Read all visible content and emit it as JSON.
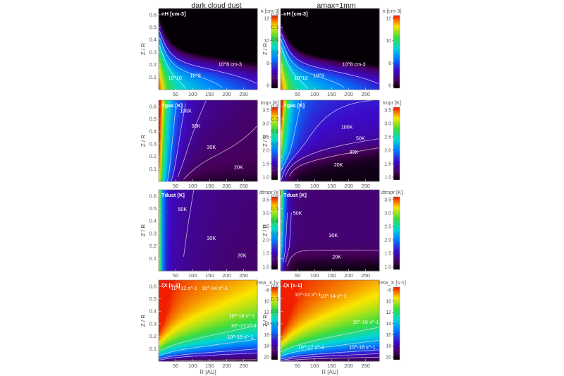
{
  "chart_data": {
    "type": "heatmap",
    "columns": [
      {
        "title": "dark cloud dust"
      },
      {
        "title": "amax=1mm"
      }
    ],
    "axis": {
      "xlabel": "R [AU]",
      "ylabel": "Z / R",
      "xticks": [
        50,
        100,
        150,
        200,
        250
      ],
      "yticks": [
        0.1,
        0.2,
        0.3,
        0.4,
        0.5,
        0.6
      ],
      "xlim": [
        0,
        290
      ],
      "ylim": [
        0,
        0.65
      ]
    },
    "rows": [
      {
        "quantity": "n",
        "colorbar_label": "n [cm-3]",
        "colorbar_ticks": [
          "12",
          "10",
          "8",
          "6"
        ],
        "colorbar_range": [
          6,
          13.5
        ],
        "colorscale": "rainbow",
        "colorbar_reversed": false,
        "inner_label": "nH [cm-3]",
        "panels": [
          {
            "contours": [
              {
                "label": "10^10",
                "level": 10,
                "x": 48,
                "y": 0.08
              },
              {
                "label": "10^9",
                "level": 9,
                "x": 108,
                "y": 0.1
              },
              {
                "label": "10^8 cm-3",
                "level": 8,
                "x": 210,
                "y": 0.19
              }
            ]
          },
          {
            "contours": [
              {
                "label": "10^10",
                "level": 10,
                "x": 60,
                "y": 0.08
              },
              {
                "label": "10^9",
                "level": 9,
                "x": 112,
                "y": 0.1
              },
              {
                "label": "10^8 cm-3",
                "level": 8,
                "x": 215,
                "y": 0.19
              }
            ]
          }
        ]
      },
      {
        "quantity": "Tgas",
        "colorbar_label": "tmpr [K]",
        "colorbar_ticks": [
          "3.5",
          "3.0",
          "2.5",
          "2.0",
          "1.5",
          "1.0"
        ],
        "colorbar_range": [
          1.0,
          3.6
        ],
        "colorscale": "rainbow",
        "colorbar_reversed": false,
        "inner_label": "Tgas [K]",
        "panels": [
          {
            "contours": [
              {
                "label": "100K",
                "level": 2.0,
                "x": 80,
                "y": 0.55
              },
              {
                "label": "50K",
                "level": 1.7,
                "x": 110,
                "y": 0.43
              },
              {
                "label": "30K",
                "level": 1.48,
                "x": 155,
                "y": 0.26
              },
              {
                "label": "20K",
                "level": 1.3,
                "x": 235,
                "y": 0.1
              }
            ]
          },
          {
            "contours": [
              {
                "label": "100K",
                "level": 2.0,
                "x": 195,
                "y": 0.42
              },
              {
                "label": "50K",
                "level": 1.7,
                "x": 235,
                "y": 0.33
              },
              {
                "label": "30K",
                "level": 1.48,
                "x": 215,
                "y": 0.22
              },
              {
                "label": "20K",
                "level": 1.3,
                "x": 170,
                "y": 0.12
              }
            ]
          }
        ]
      },
      {
        "quantity": "Tdust",
        "colorbar_label": "dtmpr [K]",
        "colorbar_ticks": [
          "3.5",
          "3.0",
          "2.5",
          "2.0",
          "1.5",
          "1.0"
        ],
        "colorbar_range": [
          1.0,
          3.6
        ],
        "colorscale": "rainbow",
        "colorbar_reversed": false,
        "inner_label": "Tdust [K]",
        "panels": [
          {
            "contours": [
              {
                "label": "50K",
                "level": 1.7,
                "x": 70,
                "y": 0.48
              },
              {
                "label": "30K",
                "level": 1.48,
                "x": 155,
                "y": 0.25
              },
              {
                "label": "20K",
                "level": 1.3,
                "x": 245,
                "y": 0.11
              }
            ]
          },
          {
            "contours": [
              {
                "label": "50K",
                "level": 1.7,
                "x": 50,
                "y": 0.45
              },
              {
                "label": "30K",
                "level": 1.48,
                "x": 155,
                "y": 0.27
              },
              {
                "label": "20K",
                "level": 1.3,
                "x": 165,
                "y": 0.1
              }
            ]
          }
        ]
      },
      {
        "quantity": "zeta_X",
        "colorbar_label": "zeta_X [s-1]",
        "colorbar_ticks": [
          "-8",
          "10",
          "12",
          "14",
          "16",
          "18",
          "20"
        ],
        "colorbar_range": [
          -20,
          -7.5
        ],
        "colorscale": "rainbow",
        "colorbar_reversed": true,
        "inner_label": "ζX [s-1]",
        "panels": [
          {
            "contours": [
              {
                "label": "10^-12 s^-1",
                "level": -12,
                "x": 75,
                "y": 0.57
              },
              {
                "label": "10^-14 s^-1",
                "level": -14,
                "x": 165,
                "y": 0.57
              },
              {
                "label": "10^-16 s^-1",
                "level": -16,
                "x": 245,
                "y": 0.35
              },
              {
                "label": "10^-17 s^-1",
                "level": -17,
                "x": 250,
                "y": 0.27
              },
              {
                "label": "10^-19 s^-1",
                "level": -19,
                "x": 240,
                "y": 0.18
              }
            ]
          },
          {
            "contours": [
              {
                "label": "10^-12 s^-1",
                "level": -12,
                "x": 80,
                "y": 0.52
              },
              {
                "label": "10^-14 s^-1",
                "level": -14,
                "x": 155,
                "y": 0.51
              },
              {
                "label": "10^-16 s^-1",
                "level": -16,
                "x": 250,
                "y": 0.3
              },
              {
                "label": "10^-17 s^-1",
                "level": -17,
                "x": 90,
                "y": 0.1
              },
              {
                "label": "10^-18 s^-1",
                "level": -18,
                "x": 240,
                "y": 0.1
              }
            ]
          }
        ]
      }
    ]
  }
}
